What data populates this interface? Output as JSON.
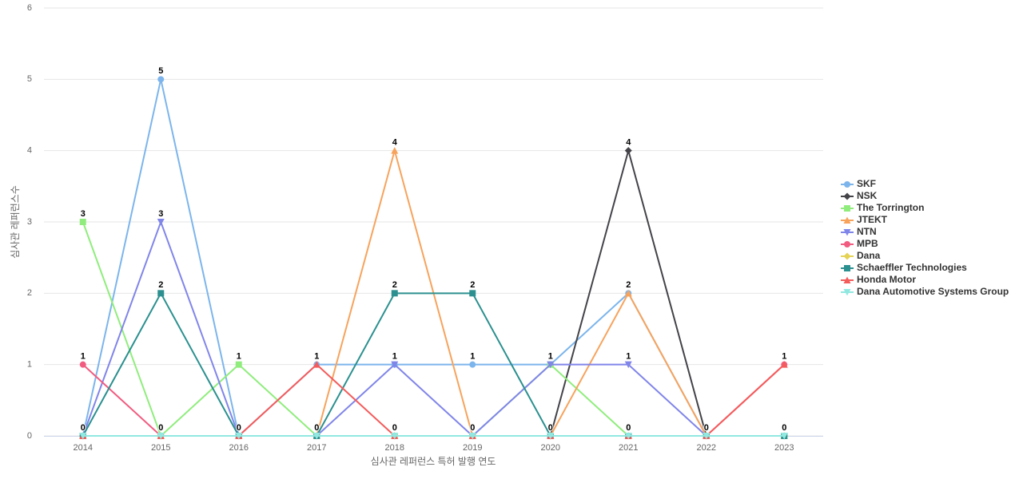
{
  "chart_data": {
    "type": "line",
    "y_label": "심사관 레퍼런스수",
    "x_label": "심사관 레퍼런스 특허 발행 연도",
    "categories": [
      "2014",
      "2015",
      "2016",
      "2017",
      "2018",
      "2019",
      "2020",
      "2021",
      "2022",
      "2023"
    ],
    "ylim": [
      0,
      6
    ],
    "yticks": [
      0,
      1,
      2,
      3,
      4,
      5,
      6
    ],
    "grid": true,
    "legend": "right",
    "series": [
      {
        "name": "SKF",
        "color": "#7cb5ec",
        "symbol": "circle",
        "values": [
          0,
          5,
          0,
          1,
          1,
          1,
          1,
          2,
          0,
          0
        ]
      },
      {
        "name": "NSK",
        "color": "#434348",
        "symbol": "diamond",
        "values": [
          0,
          0,
          0,
          0,
          0,
          0,
          0,
          4,
          0,
          0
        ]
      },
      {
        "name": "The Torrington",
        "color": "#90ed7d",
        "symbol": "square",
        "values": [
          3,
          0,
          1,
          0,
          0,
          0,
          1,
          0,
          0,
          0
        ]
      },
      {
        "name": "JTEKT",
        "color": "#f7a35c",
        "symbol": "triangle",
        "values": [
          0,
          0,
          0,
          0,
          4,
          0,
          0,
          2,
          0,
          0
        ]
      },
      {
        "name": "NTN",
        "color": "#8085e9",
        "symbol": "triangle-down",
        "values": [
          0,
          3,
          0,
          0,
          1,
          0,
          1,
          1,
          0,
          0
        ]
      },
      {
        "name": "MPB",
        "color": "#f15c80",
        "symbol": "circle",
        "values": [
          1,
          0,
          0,
          0,
          0,
          0,
          0,
          0,
          0,
          1
        ]
      },
      {
        "name": "Dana",
        "color": "#e4d354",
        "symbol": "diamond",
        "values": [
          0,
          0,
          0,
          0,
          0,
          0,
          0,
          0,
          0,
          0
        ]
      },
      {
        "name": "Schaeffler Technologies",
        "color": "#2b908f",
        "symbol": "square",
        "values": [
          0,
          2,
          0,
          0,
          2,
          2,
          0,
          0,
          0,
          0
        ]
      },
      {
        "name": "Honda Motor",
        "color": "#f45b5b",
        "symbol": "triangle",
        "values": [
          0,
          0,
          0,
          1,
          0,
          0,
          0,
          0,
          0,
          1
        ]
      },
      {
        "name": "Dana Automotive Systems Group",
        "color": "#91e8e1",
        "symbol": "triangle-down",
        "values": [
          0,
          0,
          0,
          0,
          0,
          0,
          0,
          0,
          0,
          0
        ]
      }
    ]
  }
}
